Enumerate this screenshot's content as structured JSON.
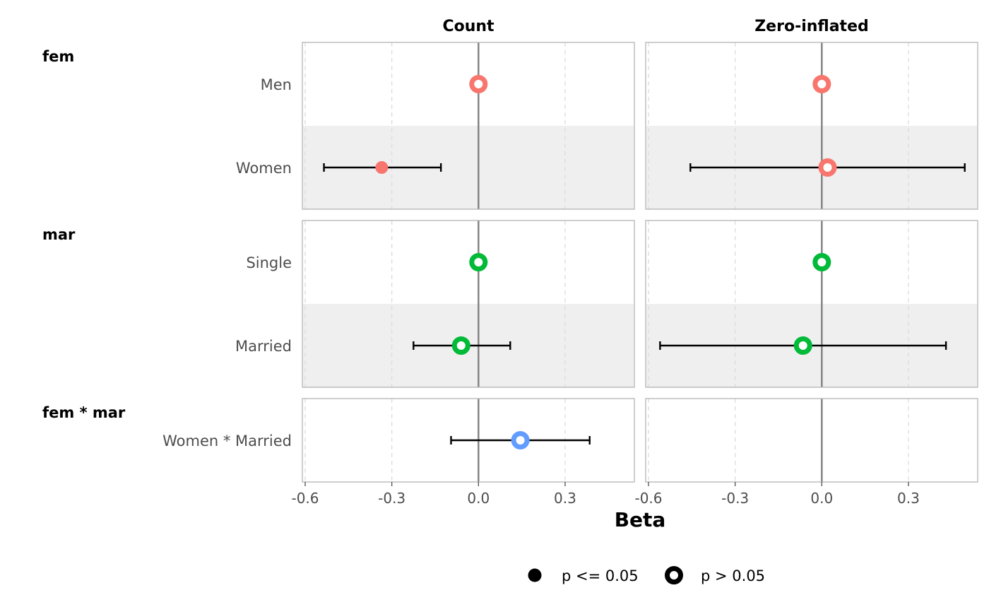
{
  "chart_data": {
    "type": "scatter",
    "subtype": "coefficient-forest-plot",
    "xlabel": "Beta",
    "xlim": [
      -0.6,
      0.53
    ],
    "x_ticks": [
      -0.6,
      -0.3,
      0.0,
      0.3
    ],
    "x_tick_labels": [
      "-0.6",
      "-0.3",
      "0.0",
      "0.3"
    ],
    "reference_line": 0,
    "grid": "vertical dashed",
    "legend_position": "bottom",
    "facets": [
      "Count",
      "Zero-inflated"
    ],
    "groups": [
      {
        "name": "fem",
        "color": "#F8766D",
        "levels": [
          {
            "label": "Men",
            "shaded": false,
            "estimates": [
              {
                "facet": "Count",
                "beta": 0.0,
                "ci": null,
                "significant": false
              },
              {
                "facet": "Zero-inflated",
                "beta": 0.0,
                "ci": null,
                "significant": false
              }
            ]
          },
          {
            "label": "Women",
            "shaded": true,
            "estimates": [
              {
                "facet": "Count",
                "beta": -0.335,
                "ci": [
                  -0.535,
                  -0.13
                ],
                "significant": true
              },
              {
                "facet": "Zero-inflated",
                "beta": 0.02,
                "ci": [
                  -0.455,
                  0.495
                ],
                "significant": false
              }
            ]
          }
        ]
      },
      {
        "name": "mar",
        "color": "#00BA38",
        "levels": [
          {
            "label": "Single",
            "shaded": false,
            "estimates": [
              {
                "facet": "Count",
                "beta": 0.0,
                "ci": null,
                "significant": false
              },
              {
                "facet": "Zero-inflated",
                "beta": 0.0,
                "ci": null,
                "significant": false
              }
            ]
          },
          {
            "label": "Married",
            "shaded": true,
            "estimates": [
              {
                "facet": "Count",
                "beta": -0.06,
                "ci": [
                  -0.225,
                  0.11
                ],
                "significant": false
              },
              {
                "facet": "Zero-inflated",
                "beta": -0.065,
                "ci": [
                  -0.56,
                  0.43
                ],
                "significant": false
              }
            ]
          }
        ]
      },
      {
        "name": "fem * mar",
        "color": "#619CFF",
        "levels": [
          {
            "label": "Women * Married",
            "shaded": false,
            "estimates": [
              {
                "facet": "Count",
                "beta": 0.145,
                "ci": [
                  -0.095,
                  0.385
                ],
                "significant": false
              }
            ]
          }
        ]
      }
    ],
    "legend": [
      {
        "label": "p <= 0.05",
        "marker": "filled-circle"
      },
      {
        "label": "p > 0.05",
        "marker": "hollow-circle"
      }
    ]
  }
}
